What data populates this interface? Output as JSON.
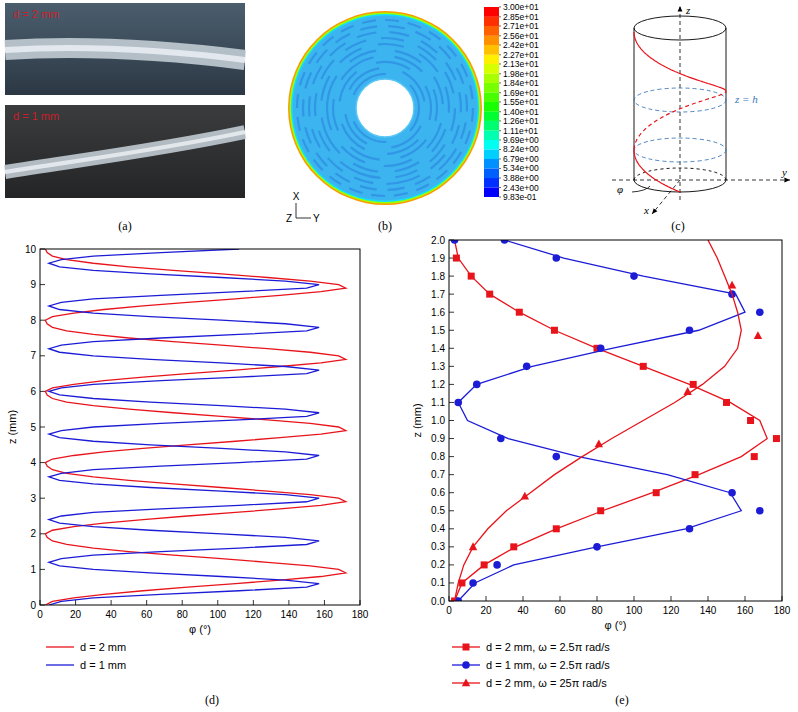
{
  "panels": {
    "a": {
      "label": "(a)",
      "photos": [
        {
          "text": "d = 2 mm"
        },
        {
          "text": "d = 1 mm"
        }
      ]
    },
    "b": {
      "label": "(b)",
      "colorbar": {
        "ticks": [
          {
            "value": 30,
            "label": "3.00e+01"
          },
          {
            "value": 28.5,
            "label": "2.85e+01"
          },
          {
            "value": 27.1,
            "label": "2.71e+01"
          },
          {
            "value": 25.6,
            "label": "2.56e+01"
          },
          {
            "value": 24.2,
            "label": "2.42e+01"
          },
          {
            "value": 22.7,
            "label": "2.27e+01"
          },
          {
            "value": 21.3,
            "label": "2.13e+01"
          },
          {
            "value": 19.8,
            "label": "1.98e+01"
          },
          {
            "value": 18.4,
            "label": "1.84e+01"
          },
          {
            "value": 16.9,
            "label": "1.69e+01"
          },
          {
            "value": 15.5,
            "label": "1.55e+01"
          },
          {
            "value": 14,
            "label": "1.40e+01"
          },
          {
            "value": 12.6,
            "label": "1.26e+01"
          },
          {
            "value": 11.1,
            "label": "1.11e+01"
          },
          {
            "value": 9.69,
            "label": "9.69e+00"
          },
          {
            "value": 8.24,
            "label": "8.24e+00"
          },
          {
            "value": 6.79,
            "label": "6.79e+00"
          },
          {
            "value": 5.34,
            "label": "5.34e+00"
          },
          {
            "value": 3.88,
            "label": "3.88e+00"
          },
          {
            "value": 2.43,
            "label": "2.43e+00"
          },
          {
            "value": 0.983,
            "label": "9.83e-01"
          }
        ],
        "colors": [
          "#ff0000",
          "#ff3000",
          "#ff6000",
          "#ff9000",
          "#ffc000",
          "#fff000",
          "#d8ff00",
          "#a8ff00",
          "#78ff00",
          "#48ff00",
          "#18ff00",
          "#00ff30",
          "#00ff70",
          "#00ffb0",
          "#00fff0",
          "#00d0ff",
          "#0090ff",
          "#0060ff",
          "#0030ff",
          "#0000ff"
        ]
      },
      "axes": {
        "x": "X",
        "z": "Z",
        "y": "Y"
      }
    },
    "c": {
      "label": "(c)",
      "z_axis": "z",
      "y_axis": "y",
      "x_axis": "x",
      "level": "z = h",
      "angle": "φ"
    }
  },
  "chart_data": [
    {
      "type": "line",
      "label": "(d)",
      "xlabel": "φ (°)",
      "ylabel": "z (mm)",
      "xlim": [
        0,
        180
      ],
      "xticks": [
        0,
        20,
        40,
        60,
        80,
        100,
        120,
        140,
        160,
        180
      ],
      "ylim": [
        0,
        10
      ],
      "yticks": [
        0,
        1,
        2,
        3,
        4,
        5,
        6,
        7,
        8,
        9,
        10
      ],
      "legend": "bottom",
      "series": [
        {
          "name": "d = 2 mm",
          "color": "#e8141b",
          "line_style": "solid",
          "x": [
            3,
            7,
            19,
            36,
            58,
            83,
            110,
            135,
            158,
            172,
            168,
            152,
            128,
            102,
            75,
            50,
            30,
            15,
            7,
            4,
            3,
            7,
            19,
            36,
            58,
            83,
            110,
            135,
            158,
            172,
            168,
            152,
            128,
            102,
            75,
            50,
            30,
            15,
            7,
            4,
            3,
            7,
            19,
            36,
            58,
            83,
            110,
            135,
            158,
            172,
            168,
            152,
            128,
            102,
            75,
            50,
            30,
            15,
            7,
            4,
            3,
            7,
            19,
            36,
            58,
            83,
            110,
            135,
            158,
            172,
            168,
            152,
            128,
            102,
            75,
            50,
            30,
            15,
            7,
            4,
            3,
            7,
            19,
            36,
            58,
            83,
            110,
            135,
            158,
            172,
            168,
            152,
            128,
            102,
            75,
            50,
            30,
            15,
            7,
            4,
            3
          ],
          "values": [
            0,
            0.1,
            0.2,
            0.3,
            0.4,
            0.5,
            0.6,
            0.7,
            0.8,
            0.9,
            1,
            1.1,
            1.2,
            1.3,
            1.4,
            1.5,
            1.6,
            1.7,
            1.8,
            1.9,
            2,
            2.1,
            2.2,
            2.3,
            2.4,
            2.5,
            2.6,
            2.7,
            2.8,
            2.9,
            3,
            3.1,
            3.2,
            3.3,
            3.4,
            3.5,
            3.6,
            3.7,
            3.8,
            3.9,
            4,
            4.1,
            4.2,
            4.3,
            4.4,
            4.5,
            4.6,
            4.7,
            4.8,
            4.9,
            5,
            5.1,
            5.2,
            5.3,
            5.4,
            5.5,
            5.6,
            5.7,
            5.8,
            5.9,
            6,
            6.1,
            6.2,
            6.3,
            6.4,
            6.5,
            6.6,
            6.7,
            6.8,
            6.9,
            7,
            7.1,
            7.2,
            7.3,
            7.4,
            7.5,
            7.6,
            7.7,
            7.8,
            7.9,
            8,
            8.1,
            8.2,
            8.3,
            8.4,
            8.5,
            8.6,
            8.7,
            8.8,
            8.9,
            9,
            9.1,
            9.2,
            9.3,
            9.4,
            9.5,
            9.6,
            9.7,
            9.8,
            9.9,
            10
          ]
        },
        {
          "name": "d = 1 mm",
          "color": "#1c1cd6",
          "line_style": "solid",
          "x": [
            5,
            12,
            30,
            68,
            112,
            150,
            157,
            138,
            102,
            62,
            30,
            11,
            5,
            12,
            30,
            68,
            112,
            150,
            157,
            138,
            102,
            62,
            30,
            11,
            5,
            12,
            30,
            68,
            112,
            150,
            157,
            138,
            102,
            62,
            30,
            11,
            5,
            12,
            30,
            68,
            112,
            150,
            157,
            138,
            102,
            62,
            30,
            11,
            5,
            12,
            30,
            68,
            112,
            150,
            157,
            138,
            102,
            62,
            30,
            11,
            5,
            12,
            30,
            68,
            112,
            150,
            157,
            138,
            102,
            62,
            30,
            11,
            5,
            12,
            30,
            68,
            112,
            150,
            157,
            138,
            102,
            62,
            30,
            11,
            5,
            12,
            30,
            68,
            112,
            150,
            157,
            138,
            102,
            62,
            30,
            11,
            5,
            12,
            30,
            68,
            112
          ],
          "values": [
            0,
            0.1,
            0.2,
            0.3,
            0.4,
            0.5,
            0.6,
            0.7,
            0.8,
            0.9,
            1,
            1.1,
            1.2,
            1.3,
            1.4,
            1.5,
            1.6,
            1.7,
            1.8,
            1.9,
            2,
            2.1,
            2.2,
            2.3,
            2.4,
            2.5,
            2.6,
            2.7,
            2.8,
            2.9,
            3,
            3.1,
            3.2,
            3.3,
            3.4,
            3.5,
            3.6,
            3.7,
            3.8,
            3.9,
            4,
            4.1,
            4.2,
            4.3,
            4.4,
            4.5,
            4.6,
            4.7,
            4.8,
            4.9,
            5,
            5.1,
            5.2,
            5.3,
            5.4,
            5.5,
            5.6,
            5.7,
            5.8,
            5.9,
            6,
            6.1,
            6.2,
            6.3,
            6.4,
            6.5,
            6.6,
            6.7,
            6.8,
            6.9,
            7,
            7.1,
            7.2,
            7.3,
            7.4,
            7.5,
            7.6,
            7.7,
            7.8,
            7.9,
            8,
            8.1,
            8.2,
            8.3,
            8.4,
            8.5,
            8.6,
            8.7,
            8.8,
            8.9,
            9,
            9.1,
            9.2,
            9.3,
            9.4,
            9.5,
            9.6,
            9.7,
            9.8,
            9.9,
            10
          ]
        }
      ]
    },
    {
      "type": "scatter",
      "label": "(e)",
      "xlabel": "φ (°)",
      "ylabel": "z (mm)",
      "xlim": [
        0,
        180
      ],
      "xticks": [
        0,
        20,
        40,
        60,
        80,
        100,
        120,
        140,
        160,
        180
      ],
      "ylim": [
        0,
        2
      ],
      "yticks": [
        {
          "value": 0,
          "label": "0.0"
        },
        0.1,
        0.2,
        0.3,
        0.4,
        0.5,
        0.6,
        0.7,
        0.8,
        0.9,
        {
          "value": 1,
          "label": "1.0"
        },
        1.1,
        1.2,
        1.3,
        1.4,
        1.5,
        1.6,
        1.7,
        1.8,
        1.9,
        {
          "value": 2,
          "label": "2.0"
        }
      ],
      "legend": "bottom",
      "series": [
        {
          "name": "d = 2 mm, ω = 2.5π rad/s",
          "color": "#e8141b",
          "marker": "square",
          "line_style": "solid",
          "x": [
            3,
            7,
            19,
            35,
            58,
            82,
            112,
            133,
            165,
            177,
            163,
            150,
            132,
            105,
            80,
            57,
            38,
            22,
            12,
            4
          ],
          "values": [
            0,
            0.1,
            0.2,
            0.3,
            0.4,
            0.5,
            0.6,
            0.7,
            0.8,
            0.9,
            1,
            1.1,
            1.2,
            1.3,
            1.4,
            1.5,
            1.6,
            1.7,
            1.8,
            1.9
          ],
          "curve": {
            "x": [
              3,
              7,
              19,
              36,
              58,
              83,
              110,
              135,
              158,
              172,
              168,
              152,
              130,
              105,
              80,
              57,
              38,
              22,
              12,
              5,
              3
            ],
            "values": [
              0,
              0.1,
              0.2,
              0.3,
              0.4,
              0.5,
              0.6,
              0.7,
              0.8,
              0.9,
              1,
              1.1,
              1.2,
              1.3,
              1.4,
              1.5,
              1.6,
              1.7,
              1.8,
              1.9,
              2
            ]
          }
        },
        {
          "name": "d = 1 mm, ω = 2.5π rad/s",
          "color": "#1c1cd6",
          "marker": "circle",
          "line_style": "solid",
          "x": [
            5,
            13,
            26,
            80,
            130,
            168,
            153,
            58,
            28,
            5,
            15,
            42,
            82,
            130,
            168,
            153,
            100,
            58,
            30,
            3
          ],
          "values": [
            0,
            0.1,
            0.2,
            0.3,
            0.4,
            0.5,
            0.6,
            0.8,
            0.9,
            1.1,
            1.2,
            1.3,
            1.4,
            1.5,
            1.6,
            1.7,
            1.8,
            1.9,
            2,
            2
          ],
          "curve": {
            "x": [
              5,
              14,
              35,
              80,
              128,
              158,
              152,
              118,
              70,
              32,
              10,
              5,
              15,
              45,
              88,
              135,
              160,
              155,
              105,
              62,
              30
            ],
            "values": [
              0,
              0.1,
              0.2,
              0.3,
              0.4,
              0.5,
              0.6,
              0.7,
              0.8,
              0.9,
              1,
              1.1,
              1.2,
              1.3,
              1.4,
              1.5,
              1.6,
              1.7,
              1.8,
              1.9,
              2
            ]
          }
        },
        {
          "name": "d = 2 mm, ω = 25π rad/s",
          "color": "#e8141b",
          "marker": "triangle",
          "line_style": "solid",
          "x": [
            13,
            41,
            81,
            129,
            167,
            153
          ],
          "values": [
            0.3,
            0.58,
            0.87,
            1.16,
            1.47,
            1.75
          ],
          "curve": {
            "x": [
              3,
              5,
              8,
              13,
              21,
              31,
              44,
              57,
              72,
              88,
              105,
              122,
              137,
              149,
              156,
              158,
              156,
              153,
              149,
              145,
              140
            ],
            "values": [
              0,
              0.1,
              0.2,
              0.3,
              0.4,
              0.5,
              0.6,
              0.7,
              0.8,
              0.9,
              1,
              1.1,
              1.2,
              1.3,
              1.4,
              1.5,
              1.6,
              1.7,
              1.8,
              1.9,
              2
            ]
          }
        }
      ]
    }
  ]
}
